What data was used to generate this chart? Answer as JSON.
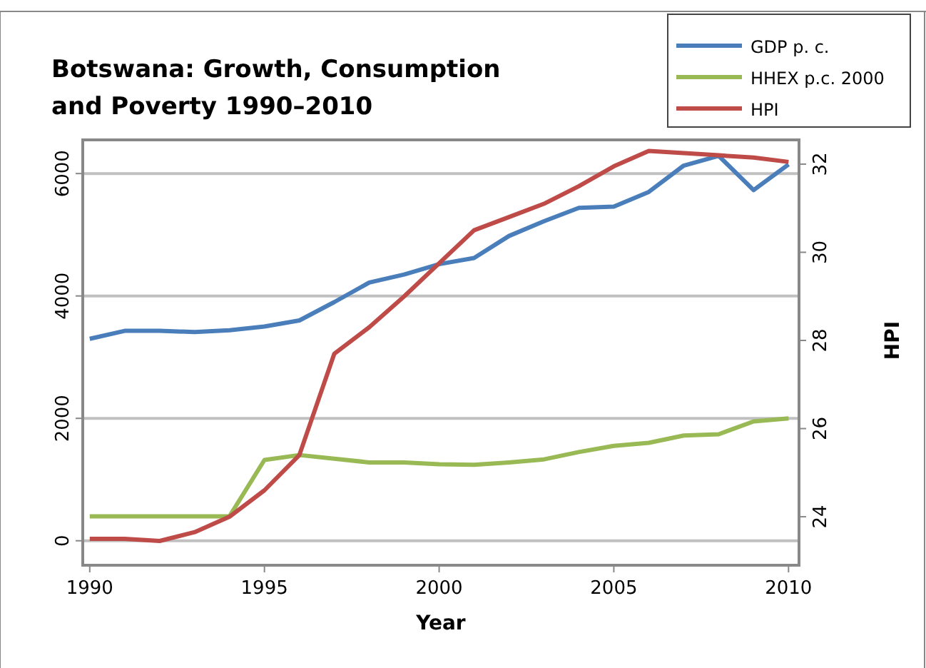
{
  "chart_data": {
    "type": "line",
    "title": "Botswana: Growth, Consumption and Poverty 1990–2010",
    "xlabel": "Year",
    "y2label": "HPI",
    "x": [
      1990,
      1991,
      1992,
      1993,
      1994,
      1995,
      1996,
      1997,
      1998,
      1999,
      2000,
      2001,
      2002,
      2003,
      2004,
      2005,
      2006,
      2007,
      2008,
      2009,
      2010
    ],
    "series": [
      {
        "name": "GDP p. c.",
        "color": "#4a7ebb",
        "values": [
          3300,
          3430,
          3430,
          3410,
          3440,
          3500,
          3600,
          3900,
          4220,
          4350,
          4520,
          4620,
          4980,
          5220,
          5440,
          5460,
          5700,
          6130,
          6290,
          5730,
          6150
        ]
      },
      {
        "name": "HHEX p.c. 2000",
        "color": "#98b954",
        "values": [
          400,
          400,
          400,
          400,
          400,
          1320,
          1400,
          1340,
          1280,
          1280,
          1250,
          1240,
          1280,
          1330,
          1450,
          1550,
          1600,
          1720,
          1740,
          1950,
          2000
        ]
      },
      {
        "name": "HPI",
        "color": "#be4b48",
        "axis": "y2",
        "values": [
          23.5,
          23.5,
          23.45,
          23.65,
          24.0,
          24.6,
          25.4,
          27.7,
          28.3,
          29.0,
          29.75,
          30.5,
          30.8,
          31.1,
          31.5,
          31.95,
          32.3,
          32.25,
          32.2,
          32.15,
          32.05
        ]
      }
    ],
    "xlim": [
      1989.8,
      2010.3
    ],
    "xticks": [
      1990,
      1995,
      2000,
      2005,
      2010
    ],
    "ylim": [
      -400,
      6550
    ],
    "yticks": [
      0,
      2000,
      4000,
      6000
    ],
    "y2lim": [
      22.9,
      32.55
    ],
    "y2ticks": [
      24,
      26,
      28,
      30,
      32
    ],
    "grid": "y",
    "legend": "top right",
    "marker": "none",
    "line_style": "solid"
  }
}
